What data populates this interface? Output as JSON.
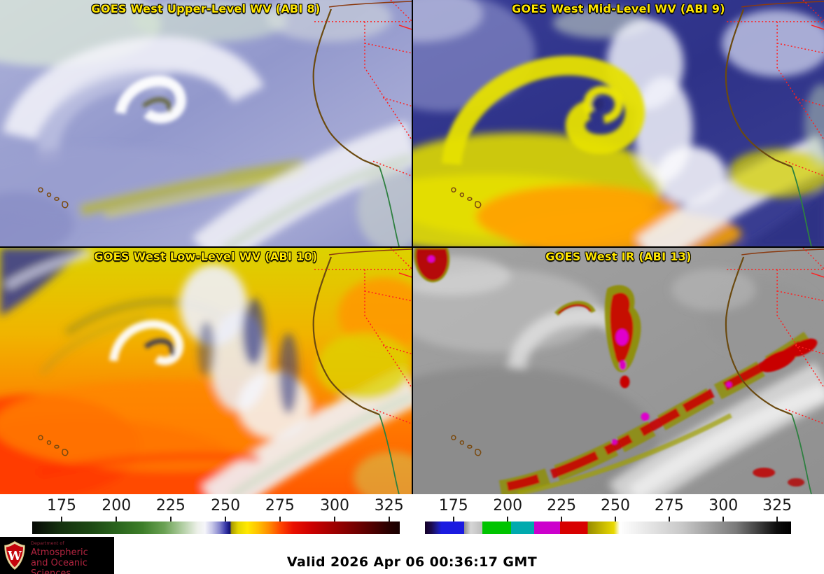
{
  "panels": [
    {
      "id": "abi8",
      "title": "GOES West Upper-Level WV (ABI 8)"
    },
    {
      "id": "abi9",
      "title": "GOES West Mid-Level WV (ABI 9)"
    },
    {
      "id": "abi10",
      "title": "GOES West Low-Level WV (ABI 10)"
    },
    {
      "id": "abi13",
      "title": "GOES West IR (ABI 13)"
    }
  ],
  "accent": {
    "title_color": "#ffe600",
    "boundary_red": "#ff2020",
    "coast_brown": "#6b4a10",
    "coast_green": "#2e8040"
  },
  "colorbars": [
    {
      "name": "wv-colorbar",
      "tick_labels": [
        "175",
        "200",
        "225",
        "250",
        "275",
        "300",
        "325"
      ],
      "tick_percents": [
        8.0,
        22.9,
        37.7,
        52.6,
        67.4,
        82.3,
        97.1
      ],
      "stops": [
        {
          "p": 0,
          "c": "#070a06"
        },
        {
          "p": 8,
          "c": "#16330f"
        },
        {
          "p": 16,
          "c": "#1d4914"
        },
        {
          "p": 24,
          "c": "#2c681e"
        },
        {
          "p": 30,
          "c": "#3d7e29"
        },
        {
          "p": 36,
          "c": "#6ba254"
        },
        {
          "p": 41,
          "c": "#b3cfa4"
        },
        {
          "p": 45,
          "c": "#edf0e9"
        },
        {
          "p": 47,
          "c": "#f5f5fa"
        },
        {
          "p": 49,
          "c": "#c6c6e8"
        },
        {
          "p": 51,
          "c": "#8585cd"
        },
        {
          "p": 52.6,
          "c": "#3a3aaa"
        },
        {
          "p": 53.8,
          "c": "#0e0e74"
        },
        {
          "p": 54.2,
          "c": "#a89a00"
        },
        {
          "p": 56,
          "c": "#e3d400"
        },
        {
          "p": 58.5,
          "c": "#ffe900"
        },
        {
          "p": 61.5,
          "c": "#ffc000"
        },
        {
          "p": 64.5,
          "c": "#ff8a00"
        },
        {
          "p": 67.5,
          "c": "#ff4600"
        },
        {
          "p": 71,
          "c": "#ea1000"
        },
        {
          "p": 76,
          "c": "#cc0000"
        },
        {
          "p": 82,
          "c": "#a00000"
        },
        {
          "p": 88,
          "c": "#740000"
        },
        {
          "p": 93,
          "c": "#4c0000"
        },
        {
          "p": 97,
          "c": "#290000"
        },
        {
          "p": 100,
          "c": "#170000"
        }
      ]
    },
    {
      "name": "ir-colorbar",
      "tick_labels": [
        "175",
        "200",
        "225",
        "250",
        "275",
        "300",
        "325"
      ],
      "tick_percents": [
        7.8,
        22.6,
        37.3,
        52.0,
        66.7,
        81.5,
        96.2
      ],
      "stops": [
        {
          "p": 0,
          "c": "#150026"
        },
        {
          "p": 1.8,
          "c": "#1a0a50"
        },
        {
          "p": 3.4,
          "c": "#1c1c9e"
        },
        {
          "p": 4.5,
          "c": "#1a1ae0"
        },
        {
          "p": 10.7,
          "c": "#1a1ae0"
        },
        {
          "p": 10.7,
          "c": "#8e8e8e"
        },
        {
          "p": 12.5,
          "c": "#d6d6d6"
        },
        {
          "p": 15.7,
          "c": "#bdbdbd"
        },
        {
          "p": 15.7,
          "c": "#00c400"
        },
        {
          "p": 23.5,
          "c": "#00c400"
        },
        {
          "p": 23.5,
          "c": "#00aaae"
        },
        {
          "p": 29.8,
          "c": "#00aaae"
        },
        {
          "p": 29.8,
          "c": "#cc00cc"
        },
        {
          "p": 36.9,
          "c": "#cc00cc"
        },
        {
          "p": 36.9,
          "c": "#d80000"
        },
        {
          "p": 44.5,
          "c": "#d80000"
        },
        {
          "p": 44.5,
          "c": "#978b00"
        },
        {
          "p": 48.5,
          "c": "#c6b800"
        },
        {
          "p": 51.6,
          "c": "#e9d900"
        },
        {
          "p": 53.2,
          "c": "#ffffff"
        },
        {
          "p": 70,
          "c": "#c9c9c9"
        },
        {
          "p": 85,
          "c": "#7a7a7a"
        },
        {
          "p": 96,
          "c": "#0d0d0d"
        },
        {
          "p": 100,
          "c": "#000000"
        }
      ]
    }
  ],
  "logo": {
    "dept": "Department of",
    "line1": "Atmospheric",
    "line2": "and Oceanic Sciences",
    "crest_letter": "W",
    "crest_red": "#c5050c"
  },
  "footer": {
    "valid": "Valid 2026 Apr 06 00:36:17 GMT"
  }
}
